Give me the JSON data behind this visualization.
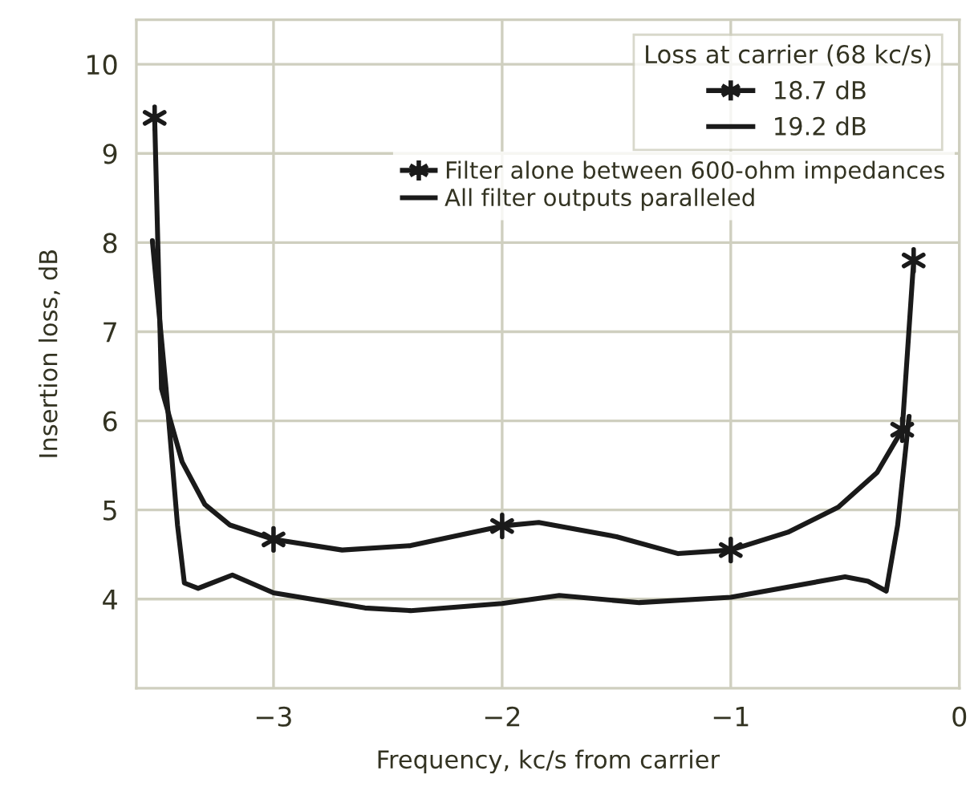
{
  "chart_data": {
    "type": "line",
    "xlabel": "Frequency, kc/s from carrier",
    "ylabel": "Insertion loss, dB",
    "legend_title": "Loss at carrier (68 kc/s)",
    "annotations": [
      "18.7 dB",
      "19.2 dB"
    ],
    "xlim": [
      -3.6,
      0
    ],
    "xticks": [
      {
        "value": -3,
        "label": "−3"
      },
      {
        "value": -2,
        "label": "−2"
      },
      {
        "value": -1,
        "label": "−1"
      },
      0
    ],
    "ylim": [
      3,
      10.5
    ],
    "yticks": [
      4,
      5,
      6,
      7,
      8,
      9,
      10
    ],
    "grid": true,
    "legend": "top right",
    "line_style": "solid",
    "series": [
      {
        "type": "scatter",
        "marker": "cross",
        "name": "Filter alone between 600-ohm impedances",
        "color": "#1a1a1a",
        "x": [
          -3.52,
          -3,
          -2,
          -1,
          -0.25,
          -0.2
        ],
        "values": [
          9.4,
          4.67,
          4.82,
          4.55,
          5.9,
          7.8
        ]
      },
      {
        "color": "#1a1a1a",
        "x": [
          -3.52,
          -3.49,
          -3.4,
          -3.3,
          -3.19,
          -3,
          -2.7,
          -2.4,
          -2,
          -1.84,
          -1.5,
          -1.23,
          -1,
          -0.75,
          -0.53,
          -0.36,
          -0.25,
          -0.2
        ],
        "values": [
          9.4,
          6.36,
          5.54,
          5.06,
          4.83,
          4.67,
          4.55,
          4.6,
          4.82,
          4.86,
          4.7,
          4.51,
          4.55,
          4.75,
          5.03,
          5.42,
          5.9,
          7.8
        ]
      },
      {
        "name": "All filter outputs paralleled",
        "color": "#1a1a1a",
        "x": [
          -3.53,
          -3.47,
          -3.42,
          -3.39,
          -3.33,
          -3.18,
          -3,
          -2.6,
          -2.4,
          -2,
          -1.75,
          -1.4,
          -1,
          -0.5,
          -0.4,
          -0.32,
          -0.27,
          -0.22
        ],
        "values": [
          8.02,
          6.36,
          4.83,
          4.18,
          4.12,
          4.27,
          4.07,
          3.9,
          3.87,
          3.95,
          4.04,
          3.96,
          4.02,
          4.25,
          4.2,
          4.09,
          4.83,
          6.05
        ]
      }
    ]
  }
}
